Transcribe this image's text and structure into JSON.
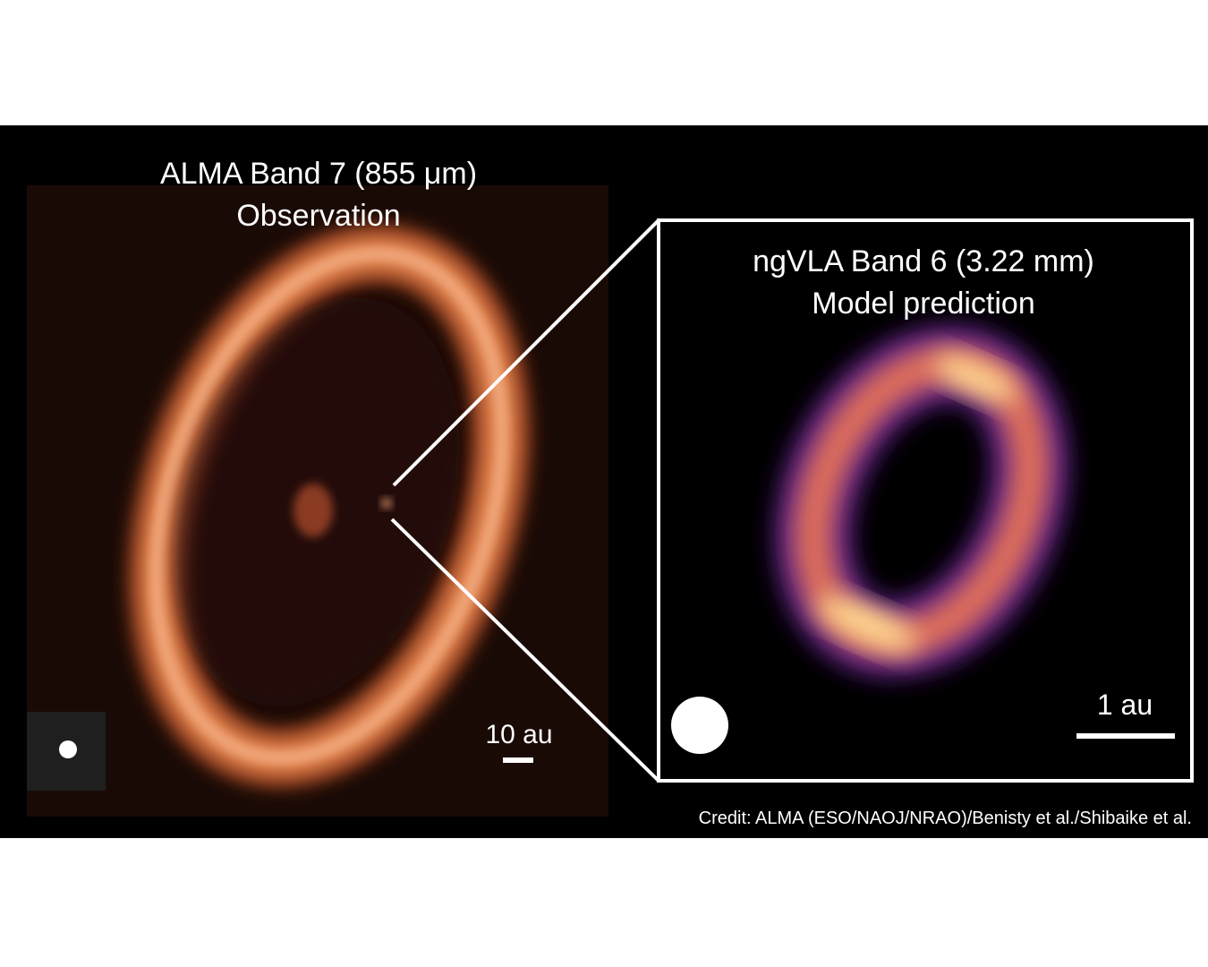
{
  "left_panel": {
    "title": [
      "ALMA Band 7 (855 μm)",
      "Observation"
    ],
    "scale_label": "10 au"
  },
  "right_panel": {
    "title": [
      "ngVLA Band 6 (3.22 mm)",
      "Model prediction"
    ],
    "scale_label": "1 au"
  },
  "credit": "Credit: ALMA (ESO/NAOJ/NRAO)/Benisty et al./Shibaike et al."
}
